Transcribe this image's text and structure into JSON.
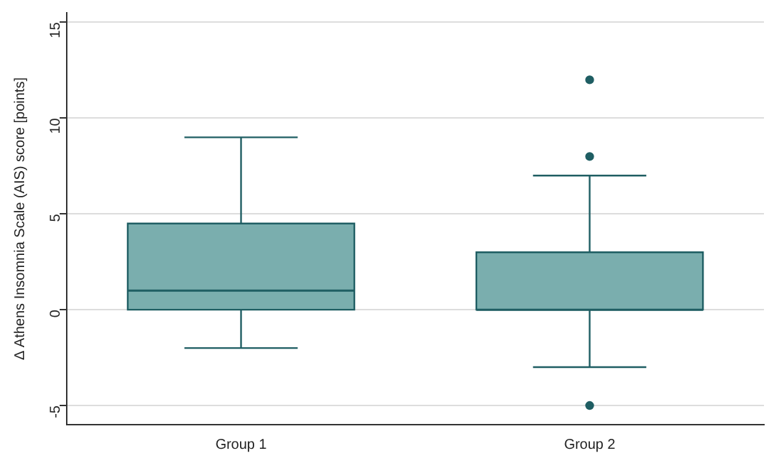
{
  "chart_data": {
    "type": "box",
    "ylabel": "Δ Athens Insomnia Scale (AIS) score [points]",
    "categories": [
      "Group 1",
      "Group 2"
    ],
    "color": "#7aaeae",
    "boxes": [
      {
        "low": -2,
        "q1": 0,
        "median": 1,
        "q3": 4.5,
        "high": 9
      },
      {
        "low": -3,
        "q1": 0,
        "median": 0,
        "q3": 3,
        "high": 7,
        "outliers": [
          12,
          8,
          -5
        ]
      }
    ],
    "ylim": [
      -6,
      15.5
    ],
    "yticks": [
      -5,
      0,
      5,
      10,
      15
    ],
    "grid": "y",
    "legend": false
  }
}
